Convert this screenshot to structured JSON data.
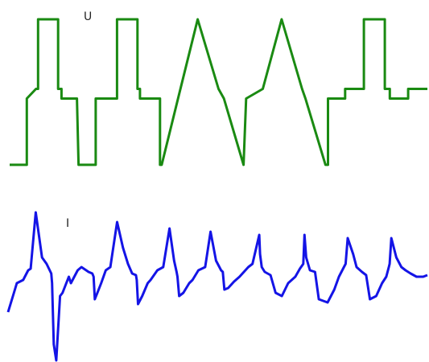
{
  "chart_data": [
    {
      "type": "line",
      "title": "",
      "xlabel": "",
      "ylabel": "",
      "label": "U",
      "color": "#1a8a12",
      "grid": false,
      "xlim": [
        0,
        100
      ],
      "ylim": [
        0,
        100
      ],
      "x": [
        0,
        4.1,
        4.1,
        6.3,
        6.8,
        6.8,
        11.6,
        11.6,
        12.4,
        12.4,
        16.1,
        16.5,
        16.5,
        20.6,
        20.6,
        25.7,
        25.7,
        30.6,
        30.6,
        31.2,
        31.2,
        36.0,
        36.0,
        36.4,
        36.4,
        40.3,
        40.3,
        45.0,
        45.0,
        50.0,
        50.0,
        51.3,
        51.3,
        56.0,
        56.0,
        56.6,
        56.6,
        60.6,
        60.6,
        65.1,
        65.1,
        70.0,
        70.0,
        70.8,
        70.8,
        75.6,
        75.6,
        76.2,
        76.2,
        80.3,
        80.3,
        84.8,
        84.8,
        89.8,
        89.8,
        91.0,
        91.0,
        95.4,
        95.4,
        100
      ],
      "y": [
        6,
        6,
        47,
        53,
        53,
        96,
        96,
        53,
        53,
        47,
        47,
        6,
        6,
        6,
        47,
        47,
        96,
        96,
        53,
        53,
        47,
        47,
        6,
        6,
        6,
        47,
        47,
        96,
        96,
        53,
        53,
        47,
        47,
        6,
        6,
        47,
        47,
        53,
        53,
        96,
        96,
        53,
        53,
        47,
        47,
        6,
        6,
        6,
        47,
        47,
        53,
        53,
        96,
        96,
        53,
        53,
        47,
        47,
        53,
        53
      ]
    },
    {
      "type": "line",
      "title": "",
      "xlabel": "",
      "ylabel": "",
      "label": "I",
      "color": "#1414e6",
      "grid": false,
      "xlim": [
        0,
        100
      ],
      "ylim": [
        0,
        100
      ],
      "x": [
        0,
        1.4,
        2.1,
        3.6,
        4.8,
        5.4,
        6.6,
        8.1,
        9.2,
        10.3,
        10.5,
        10.9,
        11.5,
        12.4,
        13.0,
        14.5,
        15.0,
        16.6,
        17.5,
        19.2,
        20.1,
        20.4,
        20.7,
        21.3,
        22.2,
        23.3,
        24.4,
        26.0,
        27.4,
        28.6,
        29.6,
        30.5,
        30.7,
        31.0,
        32.0,
        33.3,
        34.0,
        35.6,
        37.0,
        38.5,
        39.6,
        40.2,
        40.4,
        40.8,
        41.8,
        43.2,
        44.0,
        45.4,
        47.0,
        48.3,
        49.6,
        50.8,
        51.2,
        51.6,
        52.5,
        53.9,
        55.2,
        57.3,
        58.3,
        59.9,
        60.1,
        60.5,
        61.2,
        62.6,
        63.8,
        65.3,
        66.8,
        68.5,
        69.6,
        70.4,
        70.7,
        71.1,
        72.0,
        73.2,
        74.1,
        76.2,
        77.8,
        78.9,
        80.1,
        80.5,
        81.0,
        82.3,
        83.1,
        84.4,
        85.4,
        86.3,
        87.8,
        89.2,
        90.2,
        90.8,
        91.0,
        91.4,
        92.6,
        93.8,
        94.8,
        96.0,
        97.4,
        99.0,
        100
      ],
      "y": [
        30,
        42,
        48,
        50,
        56,
        57,
        92,
        64,
        60,
        54,
        48,
        10,
        0,
        40,
        42,
        52,
        48,
        56,
        58,
        55,
        54,
        52,
        38,
        42,
        48,
        56,
        58,
        86,
        70,
        60,
        54,
        53,
        50,
        35,
        40,
        48,
        50,
        56,
        58,
        82,
        62,
        55,
        52,
        40,
        42,
        48,
        50,
        56,
        58,
        80,
        62,
        56,
        55,
        44,
        45,
        49,
        52,
        58,
        60,
        78,
        66,
        58,
        55,
        53,
        42,
        40,
        48,
        52,
        57,
        60,
        78,
        64,
        56,
        55,
        38,
        36,
        44,
        52,
        58,
        60,
        76,
        66,
        58,
        55,
        53,
        38,
        40,
        48,
        52,
        58,
        60,
        76,
        64,
        58,
        56,
        54,
        52,
        52,
        53
      ]
    }
  ]
}
